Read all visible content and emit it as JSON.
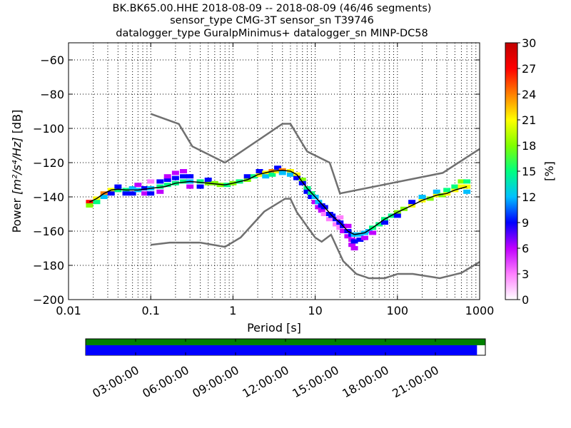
{
  "chart_data": {
    "type": "heatmap",
    "title_lines": [
      "BK.BK65.00.HHE   2018-08-09 -- 2018-08-09  (46/46 segments)",
      "sensor_type CMG-3T sensor_sn T39746",
      "datalogger_type GuralpMinimus+ datalogger_sn MINP-DC58"
    ],
    "xlabel": "Period [s]",
    "ylabel_prefix": "Power ",
    "ylabel_units": "[m²/s⁴/Hz]",
    "ylabel_suffix": " [dB]",
    "xscale": "log",
    "xlim": [
      0.01,
      1000
    ],
    "ylim": [
      -200,
      -50
    ],
    "x_ticks": [
      {
        "value": 0.01,
        "label": "0.01"
      },
      {
        "value": 0.1,
        "label": "0.1"
      },
      {
        "value": 1,
        "label": "1"
      },
      {
        "value": 10,
        "label": "10"
      },
      {
        "value": 100,
        "label": "100"
      },
      {
        "value": 1000,
        "label": "1000"
      }
    ],
    "y_ticks": [
      {
        "value": -60,
        "label": "−60"
      },
      {
        "value": -80,
        "label": "−80"
      },
      {
        "value": -100,
        "label": "−100"
      },
      {
        "value": -120,
        "label": "−120"
      },
      {
        "value": -140,
        "label": "−140"
      },
      {
        "value": -160,
        "label": "−160"
      },
      {
        "value": -180,
        "label": "−180"
      },
      {
        "value": -200,
        "label": "−200"
      }
    ],
    "grid": true,
    "colorbar": {
      "label": "[%]",
      "range": [
        0,
        30
      ],
      "ticks": [
        {
          "value": 0,
          "label": "0"
        },
        {
          "value": 3,
          "label": "3"
        },
        {
          "value": 6,
          "label": "6"
        },
        {
          "value": 9,
          "label": "9"
        },
        {
          "value": 12,
          "label": "12"
        },
        {
          "value": 15,
          "label": "15"
        },
        {
          "value": 18,
          "label": "18"
        },
        {
          "value": 21,
          "label": "21"
        },
        {
          "value": 24,
          "label": "24"
        },
        {
          "value": 27,
          "label": "27"
        },
        {
          "value": 30,
          "label": "30"
        }
      ],
      "colors": [
        "#ffffff",
        "#ff80ff",
        "#c000ff",
        "#0000ff",
        "#00c0ff",
        "#00ff80",
        "#80ff00",
        "#ffff00",
        "#ff8000",
        "#ff0000",
        "#c00000"
      ]
    },
    "noise_models": {
      "high": [
        [
          0.1,
          -91.5
        ],
        [
          0.22,
          -97.4
        ],
        [
          0.32,
          -110.5
        ],
        [
          0.8,
          -120
        ],
        [
          4,
          -97.3
        ],
        [
          5,
          -97.3
        ],
        [
          8,
          -113.5
        ],
        [
          15,
          -120
        ],
        [
          20,
          -138
        ],
        [
          354.8,
          -126
        ],
        [
          1000,
          -112
        ]
      ],
      "low": [
        [
          0.1,
          -168
        ],
        [
          0.17,
          -166.7
        ],
        [
          0.4,
          -166.7
        ],
        [
          0.8,
          -169.2
        ],
        [
          1.24,
          -163.7
        ],
        [
          2.4,
          -148.6
        ],
        [
          4.3,
          -141.1
        ],
        [
          5,
          -141.1
        ],
        [
          6,
          -149
        ],
        [
          10,
          -163.8
        ],
        [
          12,
          -166.2
        ],
        [
          15.6,
          -162.1
        ],
        [
          21.9,
          -177.5
        ],
        [
          31.6,
          -185
        ],
        [
          45,
          -187.5
        ],
        [
          70,
          -187.5
        ],
        [
          101,
          -185
        ],
        [
          154,
          -185
        ],
        [
          328,
          -187.5
        ],
        [
          600,
          -184.4
        ],
        [
          1000,
          -178
        ]
      ]
    },
    "mode_curve": [
      [
        0.018,
        -143
      ],
      [
        0.022,
        -141
      ],
      [
        0.027,
        -138
      ],
      [
        0.033,
        -136
      ],
      [
        0.04,
        -135.5
      ],
      [
        0.05,
        -136
      ],
      [
        0.07,
        -136
      ],
      [
        0.1,
        -135
      ],
      [
        0.15,
        -134
      ],
      [
        0.2,
        -132
      ],
      [
        0.3,
        -131
      ],
      [
        0.5,
        -132
      ],
      [
        0.8,
        -133
      ],
      [
        1,
        -132
      ],
      [
        1.5,
        -130
      ],
      [
        2,
        -127
      ],
      [
        3,
        -125
      ],
      [
        4,
        -124.5
      ],
      [
        5,
        -125
      ],
      [
        6,
        -127
      ],
      [
        8,
        -135
      ],
      [
        10,
        -140
      ],
      [
        13,
        -146
      ],
      [
        16,
        -151
      ],
      [
        20,
        -155
      ],
      [
        25,
        -160
      ],
      [
        30,
        -162
      ],
      [
        40,
        -161
      ],
      [
        50,
        -158
      ],
      [
        70,
        -153
      ],
      [
        100,
        -149
      ],
      [
        150,
        -145
      ],
      [
        200,
        -142
      ],
      [
        300,
        -139
      ],
      [
        400,
        -138
      ],
      [
        500,
        -136
      ],
      [
        700,
        -134
      ]
    ],
    "psd_cells": [
      [
        0.018,
        -143,
        26
      ],
      [
        0.018,
        -145,
        18
      ],
      [
        0.022,
        -141,
        22
      ],
      [
        0.022,
        -143,
        14
      ],
      [
        0.027,
        -138,
        24
      ],
      [
        0.027,
        -140,
        12
      ],
      [
        0.033,
        -136,
        20
      ],
      [
        0.033,
        -138,
        10
      ],
      [
        0.04,
        -136,
        16
      ],
      [
        0.04,
        -134,
        8
      ],
      [
        0.05,
        -136,
        14
      ],
      [
        0.05,
        -138,
        9
      ],
      [
        0.06,
        -135,
        12
      ],
      [
        0.06,
        -138,
        8
      ],
      [
        0.07,
        -136,
        11
      ],
      [
        0.07,
        -133,
        6
      ],
      [
        0.085,
        -135,
        10
      ],
      [
        0.085,
        -138,
        7
      ],
      [
        0.1,
        -135,
        12
      ],
      [
        0.1,
        -138,
        8
      ],
      [
        0.1,
        -131,
        4
      ],
      [
        0.13,
        -134,
        14
      ],
      [
        0.13,
        -131,
        8
      ],
      [
        0.13,
        -137,
        6
      ],
      [
        0.16,
        -133,
        15
      ],
      [
        0.16,
        -130,
        9
      ],
      [
        0.16,
        -128,
        5
      ],
      [
        0.2,
        -132,
        16
      ],
      [
        0.2,
        -129,
        9
      ],
      [
        0.2,
        -126,
        6
      ],
      [
        0.25,
        -131,
        14
      ],
      [
        0.25,
        -128,
        10
      ],
      [
        0.25,
        -125,
        6
      ],
      [
        0.3,
        -131,
        13
      ],
      [
        0.3,
        -128,
        9
      ],
      [
        0.3,
        -134,
        7
      ],
      [
        0.4,
        -131,
        15
      ],
      [
        0.4,
        -134,
        8
      ],
      [
        0.5,
        -132,
        17
      ],
      [
        0.5,
        -130,
        9
      ],
      [
        0.6,
        -132,
        18
      ],
      [
        0.7,
        -133,
        17
      ],
      [
        0.85,
        -133,
        16
      ],
      [
        1,
        -132,
        18
      ],
      [
        1.2,
        -131,
        16
      ],
      [
        1.5,
        -130,
        18
      ],
      [
        1.5,
        -128,
        10
      ],
      [
        1.8,
        -128,
        16
      ],
      [
        2.1,
        -127,
        20
      ],
      [
        2.1,
        -125,
        10
      ],
      [
        2.5,
        -126,
        22
      ],
      [
        2.5,
        -128,
        12
      ],
      [
        3,
        -125,
        24
      ],
      [
        3,
        -127,
        14
      ],
      [
        3.5,
        -125,
        22
      ],
      [
        3.5,
        -123,
        10
      ],
      [
        4,
        -124.5,
        24
      ],
      [
        4,
        -126,
        12
      ],
      [
        5,
        -125,
        22
      ],
      [
        5,
        -127,
        12
      ],
      [
        6,
        -127,
        20
      ],
      [
        6,
        -129,
        10
      ],
      [
        7,
        -130,
        18
      ],
      [
        7,
        -132,
        10
      ],
      [
        8,
        -135,
        16
      ],
      [
        8,
        -137,
        8
      ],
      [
        9,
        -138,
        14
      ],
      [
        9,
        -140,
        8
      ],
      [
        10,
        -140,
        12
      ],
      [
        10,
        -143,
        6
      ],
      [
        11,
        -143,
        11
      ],
      [
        11,
        -146,
        6
      ],
      [
        12,
        -145,
        10
      ],
      [
        12,
        -148,
        5
      ],
      [
        13,
        -146,
        10
      ],
      [
        13,
        -150,
        4
      ],
      [
        15,
        -150,
        9
      ],
      [
        15,
        -153,
        4
      ],
      [
        16,
        -151,
        9
      ],
      [
        18,
        -153,
        8
      ],
      [
        18,
        -156,
        4
      ],
      [
        20,
        -155,
        8
      ],
      [
        20,
        -158,
        4
      ],
      [
        20,
        -152,
        4
      ],
      [
        22,
        -157,
        8
      ],
      [
        22,
        -160,
        5
      ],
      [
        25,
        -160,
        10
      ],
      [
        25,
        -163,
        6
      ],
      [
        25,
        -157,
        5
      ],
      [
        28,
        -162,
        10
      ],
      [
        28,
        -165,
        7
      ],
      [
        28,
        -168,
        5
      ],
      [
        30,
        -162,
        12
      ],
      [
        30,
        -166,
        8
      ],
      [
        30,
        -170,
        5
      ],
      [
        35,
        -162,
        12
      ],
      [
        35,
        -165,
        8
      ],
      [
        40,
        -161,
        12
      ],
      [
        40,
        -164,
        7
      ],
      [
        45,
        -160,
        12
      ],
      [
        50,
        -158,
        14
      ],
      [
        50,
        -161,
        6
      ],
      [
        60,
        -156,
        14
      ],
      [
        70,
        -153,
        16
      ],
      [
        70,
        -155,
        8
      ],
      [
        85,
        -151,
        16
      ],
      [
        100,
        -149,
        18
      ],
      [
        100,
        -151,
        10
      ],
      [
        120,
        -147,
        18
      ],
      [
        150,
        -145,
        20
      ],
      [
        150,
        -143,
        10
      ],
      [
        200,
        -142,
        20
      ],
      [
        200,
        -140,
        12
      ],
      [
        250,
        -141,
        18
      ],
      [
        300,
        -139,
        20
      ],
      [
        300,
        -137,
        12
      ],
      [
        350,
        -139,
        18
      ],
      [
        400,
        -138,
        20
      ],
      [
        400,
        -136,
        14
      ],
      [
        500,
        -136,
        20
      ],
      [
        500,
        -134,
        16
      ],
      [
        600,
        -134,
        22
      ],
      [
        600,
        -131,
        18
      ],
      [
        700,
        -134,
        20
      ],
      [
        700,
        -131,
        16
      ],
      [
        700,
        -137,
        12
      ]
    ],
    "timeline": {
      "tick_labels": [
        "03:00:00",
        "06:00:00",
        "09:00:00",
        "12:00:00",
        "15:00:00",
        "18:00:00",
        "21:00:00"
      ],
      "tick_hours": [
        3,
        6,
        9,
        12,
        15,
        18,
        21
      ],
      "range_hours": [
        0,
        24
      ],
      "coverage_end_hours": 23.5,
      "data_color": "#0000ff",
      "gaps_color": "#008000"
    },
    "colors": {
      "noise_model": "#707070",
      "mode": "#000000"
    }
  }
}
